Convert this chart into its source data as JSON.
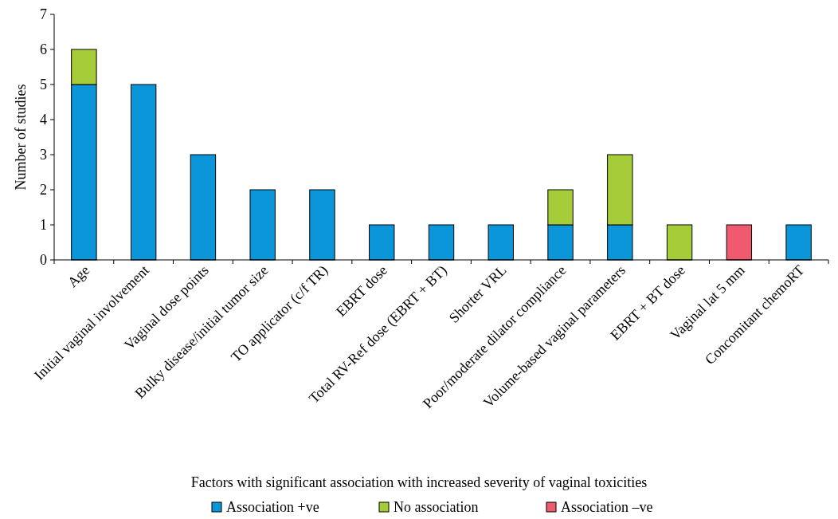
{
  "chart_data": {
    "type": "bar",
    "stacked": true,
    "ylabel": "Number of studies",
    "xlabel": "Factors with significant association with increased severity of vaginal toxicities",
    "categories": [
      "Age",
      "Initial vaginal involvement",
      "Vaginal dose points",
      "Bulky disease/initial tumor size",
      "TO applicator (c/f TR)",
      "EBRT dose",
      "Total RV-Ref dose (EBRT + BT)",
      "Shorter VRL",
      "Poor/moderate dilator compliance",
      "Volume-based vaginal parameters",
      "EBRT + BT dose",
      "Vaginal lat 5 mm",
      "Concomitant chemoRT"
    ],
    "series": [
      {
        "name": "Association +ve",
        "color": "#0a96d8",
        "values": [
          5,
          5,
          3,
          2,
          2,
          1,
          1,
          1,
          1,
          1,
          0,
          0,
          1
        ]
      },
      {
        "name": "No association",
        "color": "#a5cd3a",
        "values": [
          1,
          0,
          0,
          0,
          0,
          0,
          0,
          0,
          1,
          2,
          1,
          0,
          0
        ]
      },
      {
        "name": "Association –ve",
        "color": "#ef5a6f",
        "values": [
          0,
          0,
          0,
          0,
          0,
          0,
          0,
          0,
          0,
          0,
          0,
          1,
          0
        ]
      }
    ],
    "ylim": [
      0,
      7
    ],
    "yticks": [
      0,
      1,
      2,
      3,
      4,
      5,
      6,
      7
    ],
    "grid": false,
    "legend": "bottom"
  }
}
